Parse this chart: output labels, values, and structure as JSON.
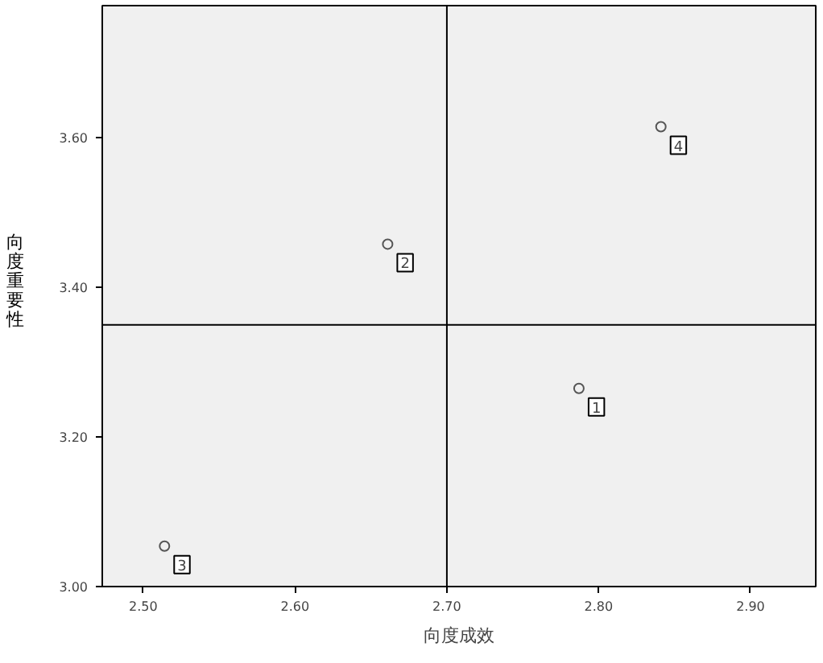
{
  "chart_data": {
    "type": "scatter",
    "xlabel": "向度成效",
    "ylabel": "向度重要性",
    "x": [
      2.787,
      2.661,
      2.514,
      2.841
    ],
    "series": [
      {
        "color": "#555555",
        "values": [
          3.265,
          3.458,
          3.054,
          3.615
        ]
      }
    ],
    "marker": "circle",
    "grid": false,
    "xlim": [
      2.473,
      2.943
    ],
    "ylim": [
      3.0,
      3.777
    ],
    "xticks": [
      {
        "value": 2.5,
        "label": "2.50"
      },
      {
        "value": 2.6,
        "label": "2.60"
      },
      {
        "value": 2.7,
        "label": "2.70"
      },
      {
        "value": 2.8,
        "label": "2.80"
      },
      {
        "value": 2.9,
        "label": "2.90"
      }
    ],
    "yticks": [
      {
        "value": 3.0,
        "label": "3.00"
      },
      {
        "value": 3.2,
        "label": "3.20"
      },
      {
        "value": 3.4,
        "label": "3.40"
      },
      {
        "value": 3.6,
        "label": "3.60"
      }
    ],
    "ref_lines": [
      {
        "axis": "x",
        "value": 2.7,
        "color": "#000000"
      },
      {
        "axis": "y",
        "value": 3.35,
        "color": "#000000"
      }
    ],
    "annotations": [
      {
        "text": "1",
        "x": 2.787,
        "y": 3.265
      },
      {
        "text": "2",
        "x": 2.661,
        "y": 3.458
      },
      {
        "text": "3",
        "x": 2.514,
        "y": 3.054
      },
      {
        "text": "4",
        "x": 2.841,
        "y": 3.615
      }
    ]
  }
}
